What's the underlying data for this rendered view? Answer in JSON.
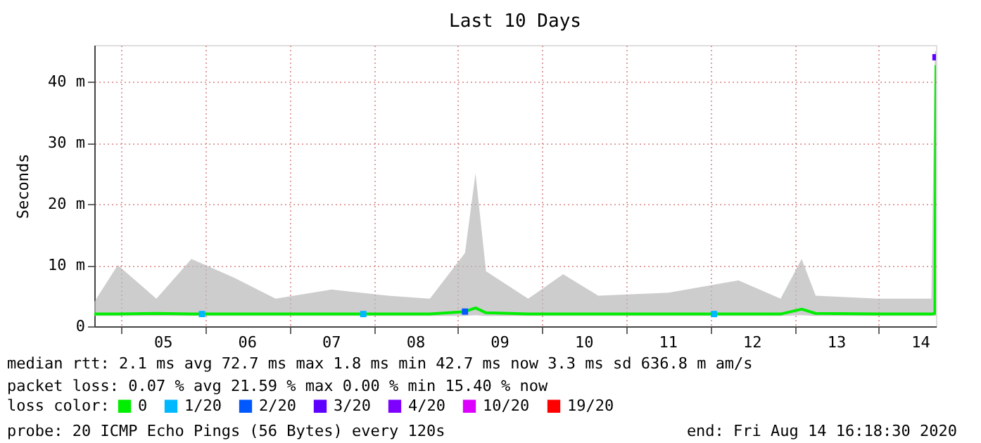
{
  "chart_data": {
    "type": "line",
    "title": "Last 10 Days",
    "ylabel": "Seconds",
    "legend_title": "loss color:",
    "legend": "bottom",
    "grid": true,
    "line_style": "solid",
    "xlim": [
      "2020-08-04T16:18",
      "2020-08-14T16:18"
    ],
    "xticks": [
      {
        "value": "2020-08-05T00:00",
        "label": null
      },
      {
        "value": "2020-08-05T12:00",
        "label": "05"
      },
      {
        "value": "2020-08-06T00:00",
        "label": null
      },
      {
        "value": "2020-08-06T12:00",
        "label": "06"
      },
      {
        "value": "2020-08-07T00:00",
        "label": null
      },
      {
        "value": "2020-08-07T12:00",
        "label": "07"
      },
      {
        "value": "2020-08-08T00:00",
        "label": null
      },
      {
        "value": "2020-08-08T12:00",
        "label": "08"
      },
      {
        "value": "2020-08-09T00:00",
        "label": null
      },
      {
        "value": "2020-08-09T12:00",
        "label": "09"
      },
      {
        "value": "2020-08-10T00:00",
        "label": null
      },
      {
        "value": "2020-08-10T12:00",
        "label": "10"
      },
      {
        "value": "2020-08-11T00:00",
        "label": null
      },
      {
        "value": "2020-08-11T12:00",
        "label": "11"
      },
      {
        "value": "2020-08-12T00:00",
        "label": null
      },
      {
        "value": "2020-08-12T12:00",
        "label": "12"
      },
      {
        "value": "2020-08-13T00:00",
        "label": null
      },
      {
        "value": "2020-08-13T12:00",
        "label": "13"
      },
      {
        "value": "2020-08-14T00:00",
        "label": null
      },
      {
        "value": "2020-08-14T12:00",
        "label": "14"
      }
    ],
    "ylim": [
      0,
      46
    ],
    "yticks": [
      0,
      {
        "value": 10,
        "label": "10 m"
      },
      {
        "value": 20,
        "label": "20 m"
      },
      {
        "value": 30,
        "label": "30 m"
      },
      {
        "value": 40,
        "label": "40 m"
      }
    ],
    "series": [
      {
        "name": "0",
        "color": "#00ee00",
        "x": [
          "2020-08-04T16:18",
          "2020-08-04T23:00",
          "2020-08-05T10:00",
          "2020-08-05T20:00",
          "2020-08-06T08:00",
          "2020-08-06T20:00",
          "2020-08-07T12:00",
          "2020-08-08T04:00",
          "2020-08-08T16:00",
          "2020-08-09T02:00",
          "2020-08-09T05:00",
          "2020-08-09T08:00",
          "2020-08-09T20:00",
          "2020-08-10T06:00",
          "2020-08-10T16:00",
          "2020-08-11T12:00",
          "2020-08-12T08:00",
          "2020-08-12T20:00",
          "2020-08-13T02:00",
          "2020-08-13T06:00",
          "2020-08-14T00:00",
          "2020-08-14T15:00",
          "2020-08-14T16:00",
          "2020-08-14T16:18"
        ],
        "values": [
          2.0,
          2.0,
          2.1,
          2.0,
          2.0,
          2.0,
          2.0,
          2.0,
          2.0,
          2.4,
          3.0,
          2.2,
          2.0,
          2.0,
          2.0,
          2.0,
          2.0,
          2.0,
          2.8,
          2.1,
          2.0,
          2.0,
          2.1,
          42.7
        ],
        "lower": [
          1.7,
          1.7,
          1.7,
          1.7,
          1.7,
          1.7,
          1.7,
          1.7,
          1.7,
          1.7,
          1.8,
          1.7,
          1.7,
          1.7,
          1.7,
          1.7,
          1.7,
          1.7,
          1.8,
          1.7,
          1.7,
          1.7,
          1.7,
          1.7
        ],
        "upper": [
          4,
          10,
          4.5,
          11,
          8,
          4.5,
          6,
          5,
          4.5,
          12,
          25,
          9,
          4.5,
          8.5,
          5,
          5.5,
          7.5,
          4.5,
          11,
          5,
          4.5,
          4.5,
          45,
          45
        ]
      },
      {
        "name": "1/20",
        "color": "#00b8ff",
        "type": "scatter",
        "marker": "square",
        "x": [
          "2020-08-05T23:00",
          "2020-08-07T21:00",
          "2020-08-12T01:00"
        ],
        "values": [
          2.0,
          2.0,
          2.0
        ]
      },
      {
        "name": "2/20",
        "color": "#0059ff",
        "type": "scatter",
        "marker": "square",
        "x": [
          "2020-08-09T02:00"
        ],
        "values": [
          2.4
        ]
      },
      {
        "name": "3/20",
        "color": "#5e00ff",
        "type": "scatter",
        "marker": "square",
        "x": [
          "2020-08-14T16:10"
        ],
        "values": [
          44
        ]
      },
      {
        "name": "4/20",
        "color": "#7e00ff"
      },
      {
        "name": "10/20",
        "color": "#dd00ff"
      },
      {
        "name": "19/20",
        "color": "#ff0000"
      }
    ],
    "annotations": [
      "median rtt:  2.1 ms avg  72.7 ms max  1.8 ms min  42.7 ms now  3.3 ms sd  636.8 m am/s",
      "packet loss: 0.07 % avg  21.59 % max  0.00 % min  15.40 % now",
      "probe:       20 ICMP Echo Pings (56 Bytes) every 120s",
      "end: Fri Aug 14 16:18:30 2020"
    ]
  }
}
